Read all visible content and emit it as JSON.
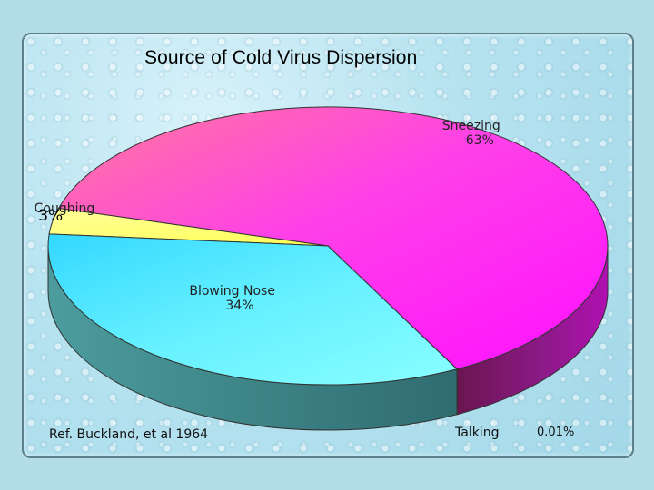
{
  "chart_data": {
    "type": "pie",
    "title": "Source of Cold Virus Dispersion",
    "slices": [
      {
        "name": "Sneezing",
        "value": 63,
        "label": "63%",
        "color": "#ff33ff"
      },
      {
        "name": "Coughing",
        "value": 3,
        "label": "3%",
        "color": "#ffff88"
      },
      {
        "name": "Blowing Nose",
        "value": 34,
        "label": "34%",
        "color": "#66eeff"
      },
      {
        "name": "Talking",
        "value": 0.01,
        "label": "0.01%",
        "color": "#cccccc"
      }
    ],
    "style": "3d"
  },
  "footer": {
    "reference": "Ref. Buckland, et al 1964"
  }
}
